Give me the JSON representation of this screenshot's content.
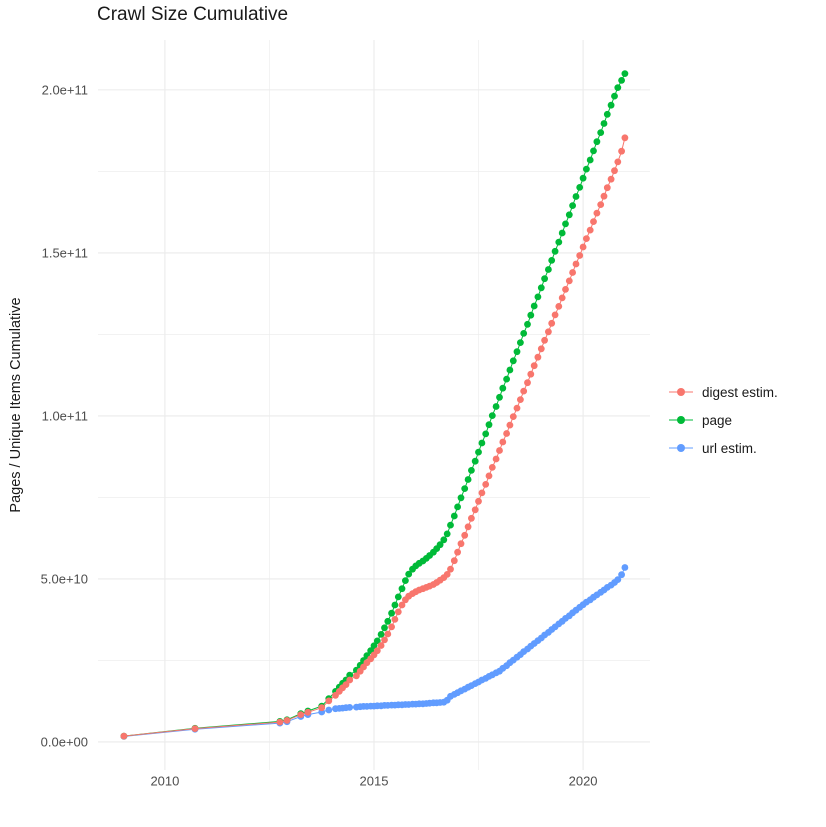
{
  "title": "Crawl Size Cumulative",
  "colors": {
    "digest": "#F8766D",
    "page": "#00BA38",
    "url": "#619CFF",
    "grid": "#EBEBEB",
    "tick_text": "#4D4D4D",
    "text": "#1A1A1A"
  },
  "chart_data": {
    "type": "scatter",
    "title": "Crawl Size Cumulative",
    "xlabel": "",
    "ylabel": "Pages / Unique Items Cumulative",
    "grid": true,
    "legend_position": "right",
    "xlim": [
      2008.4,
      2021.6
    ],
    "ylim": [
      -8600000000,
      215300000000
    ],
    "x_ticks": [
      2010,
      2015,
      2020
    ],
    "x_tick_labels": [
      "2010",
      "2015",
      "2020"
    ],
    "x_minor_ticks": [
      2012.5,
      2017.5
    ],
    "y_ticks": [
      0,
      50000000000,
      100000000000,
      150000000000,
      200000000000
    ],
    "y_tick_labels": [
      "0.0e+00",
      "5.0e+10",
      "1.0e+11",
      "1.5e+11",
      "2.0e+11"
    ],
    "y_minor_ticks": [
      25000000000,
      75000000000,
      125000000000,
      175000000000
    ],
    "values_unit": 1000000000,
    "x": [
      2009.02,
      2010.72,
      2012.75,
      2012.92,
      2013.25,
      2013.42,
      2013.75,
      2013.92,
      2014.08,
      2014.17,
      2014.25,
      2014.33,
      2014.42,
      2014.58,
      2014.67,
      2014.75,
      2014.83,
      2014.92,
      2015.0,
      2015.08,
      2015.17,
      2015.25,
      2015.33,
      2015.42,
      2015.5,
      2015.58,
      2015.67,
      2015.75,
      2015.83,
      2015.92,
      2016.0,
      2016.08,
      2016.17,
      2016.25,
      2016.33,
      2016.42,
      2016.5,
      2016.58,
      2016.67,
      2016.75,
      2016.83,
      2016.92,
      2017.0,
      2017.08,
      2017.17,
      2017.25,
      2017.33,
      2017.42,
      2017.5,
      2017.58,
      2017.67,
      2017.75,
      2017.83,
      2017.92,
      2018.0,
      2018.08,
      2018.17,
      2018.25,
      2018.33,
      2018.42,
      2018.5,
      2018.58,
      2018.67,
      2018.75,
      2018.83,
      2018.92,
      2019.0,
      2019.08,
      2019.17,
      2019.25,
      2019.33,
      2019.42,
      2019.5,
      2019.58,
      2019.67,
      2019.75,
      2019.83,
      2019.92,
      2020.0,
      2020.08,
      2020.17,
      2020.25,
      2020.33,
      2020.42,
      2020.5,
      2020.58,
      2020.67,
      2020.75,
      2020.83,
      2020.92,
      2021.0
    ],
    "series": [
      {
        "name": "url estim.",
        "key": "url",
        "color": "#619CFF",
        "values_e9": [
          1.7,
          3.9,
          5.8,
          6.2,
          7.8,
          8.4,
          9.2,
          9.8,
          10.2,
          10.3,
          10.4,
          10.5,
          10.6,
          10.7,
          10.8,
          10.9,
          10.9,
          11.0,
          11.0,
          11.1,
          11.1,
          11.2,
          11.2,
          11.3,
          11.3,
          11.4,
          11.4,
          11.5,
          11.5,
          11.6,
          11.6,
          11.7,
          11.7,
          11.8,
          11.9,
          12.0,
          12.0,
          12.1,
          12.2,
          12.8,
          14.0,
          14.6,
          15.1,
          15.7,
          16.2,
          16.8,
          17.3,
          17.9,
          18.4,
          19.0,
          19.5,
          20.1,
          20.6,
          21.2,
          21.7,
          22.6,
          23.4,
          24.3,
          25.1,
          26.0,
          26.8,
          27.7,
          28.5,
          29.4,
          30.2,
          31.1,
          31.9,
          32.8,
          33.6,
          34.5,
          35.3,
          36.2,
          37.0,
          37.9,
          38.7,
          39.6,
          40.4,
          41.3,
          42.1,
          42.9,
          43.6,
          44.4,
          45.1,
          45.9,
          46.6,
          47.4,
          48.1,
          48.9,
          49.8,
          51.3,
          53.5
        ]
      },
      {
        "name": "page",
        "key": "page",
        "color": "#00BA38",
        "values_e9": [
          1.8,
          4.2,
          6.3,
          6.8,
          8.7,
          9.5,
          11.0,
          13.3,
          15.5,
          16.8,
          18.0,
          19.0,
          20.5,
          22.0,
          23.5,
          25.0,
          26.5,
          28.0,
          29.5,
          31.0,
          33.0,
          35.0,
          37.0,
          39.5,
          42.0,
          44.5,
          47.0,
          49.5,
          51.5,
          53.0,
          54.0,
          54.8,
          55.5,
          56.3,
          57.2,
          58.2,
          59.3,
          60.5,
          62.0,
          63.8,
          66.5,
          69.3,
          72.1,
          74.9,
          77.7,
          80.5,
          83.3,
          86.1,
          88.9,
          91.7,
          94.5,
          97.3,
          100.1,
          102.9,
          105.7,
          108.5,
          111.3,
          114.1,
          116.9,
          119.7,
          122.5,
          125.3,
          128.1,
          130.9,
          133.7,
          136.5,
          139.3,
          142.1,
          144.9,
          147.7,
          150.5,
          153.3,
          156.1,
          158.9,
          161.7,
          164.5,
          167.3,
          170.1,
          172.9,
          175.7,
          178.5,
          181.3,
          184.1,
          186.9,
          189.7,
          192.5,
          195.3,
          198.1,
          200.7,
          202.9,
          205.0
        ]
      },
      {
        "name": "digest estim.",
        "key": "digest",
        "color": "#F8766D",
        "values_e9": [
          1.8,
          4.1,
          6.1,
          6.6,
          8.4,
          9.1,
          10.5,
          12.6,
          14.3,
          15.5,
          16.6,
          17.6,
          19.0,
          20.3,
          21.7,
          23.0,
          24.3,
          25.5,
          26.7,
          28.0,
          29.6,
          31.3,
          33.1,
          35.3,
          37.6,
          39.9,
          42.0,
          43.6,
          44.7,
          45.5,
          46.1,
          46.6,
          47.0,
          47.4,
          47.8,
          48.3,
          48.9,
          49.6,
          50.4,
          51.4,
          53.0,
          55.6,
          58.2,
          60.8,
          63.4,
          66.0,
          68.6,
          71.2,
          73.8,
          76.4,
          79.0,
          81.6,
          84.2,
          86.8,
          89.4,
          92.0,
          94.6,
          97.2,
          99.8,
          102.4,
          105.0,
          107.6,
          110.2,
          112.8,
          115.4,
          118.0,
          120.6,
          123.2,
          125.8,
          128.4,
          131.0,
          133.6,
          136.2,
          138.8,
          141.4,
          144.0,
          146.6,
          149.2,
          151.8,
          154.4,
          157.0,
          159.6,
          162.2,
          164.8,
          167.4,
          170.0,
          172.6,
          175.2,
          177.9,
          181.2,
          185.3
        ]
      }
    ],
    "legend_order": [
      "digest estim.",
      "page",
      "url estim."
    ]
  }
}
